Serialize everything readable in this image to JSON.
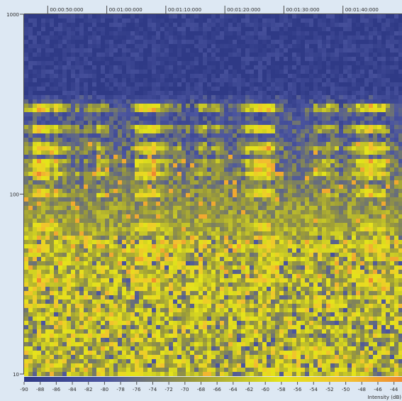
{
  "chart_data": {
    "type": "heatmap",
    "title": "",
    "xlabel": "",
    "ylabel": "",
    "x_ticks": [
      "00:00:50:000",
      "00:01:00:000",
      "00:01:10:000",
      "00:01:20:000",
      "00:01:30:000",
      "00:01:40:000"
    ],
    "x_range_seconds": [
      46,
      110
    ],
    "x_tick_seconds": [
      50,
      60,
      70,
      80,
      90,
      100
    ],
    "y_scale": "log",
    "y_ticks": [
      "1000",
      "100",
      "10"
    ],
    "y_tick_values": [
      1000,
      100,
      10
    ],
    "y_range": [
      10,
      1000
    ],
    "harmonic_bands_hz": [
      300,
      230,
      180,
      150,
      130,
      100,
      65,
      50,
      33
    ],
    "colorbar": {
      "label": "Intensity (dB)",
      "ticks": [
        "-90",
        "-88",
        "-86",
        "-84",
        "-82",
        "-80",
        "-78",
        "-76",
        "-74",
        "-72",
        "-70",
        "-68",
        "-66",
        "-64",
        "-62",
        "-60",
        "-58",
        "-56",
        "-54",
        "-52",
        "-50",
        "-48",
        "-46",
        "-44"
      ],
      "range": [
        -90,
        -43
      ],
      "colors": [
        "#2f3a86",
        "#4b55a0",
        "#9a9a3a",
        "#e4e41a",
        "#f2c030",
        "#ef8a30"
      ]
    },
    "grid": false,
    "legend": "none"
  }
}
